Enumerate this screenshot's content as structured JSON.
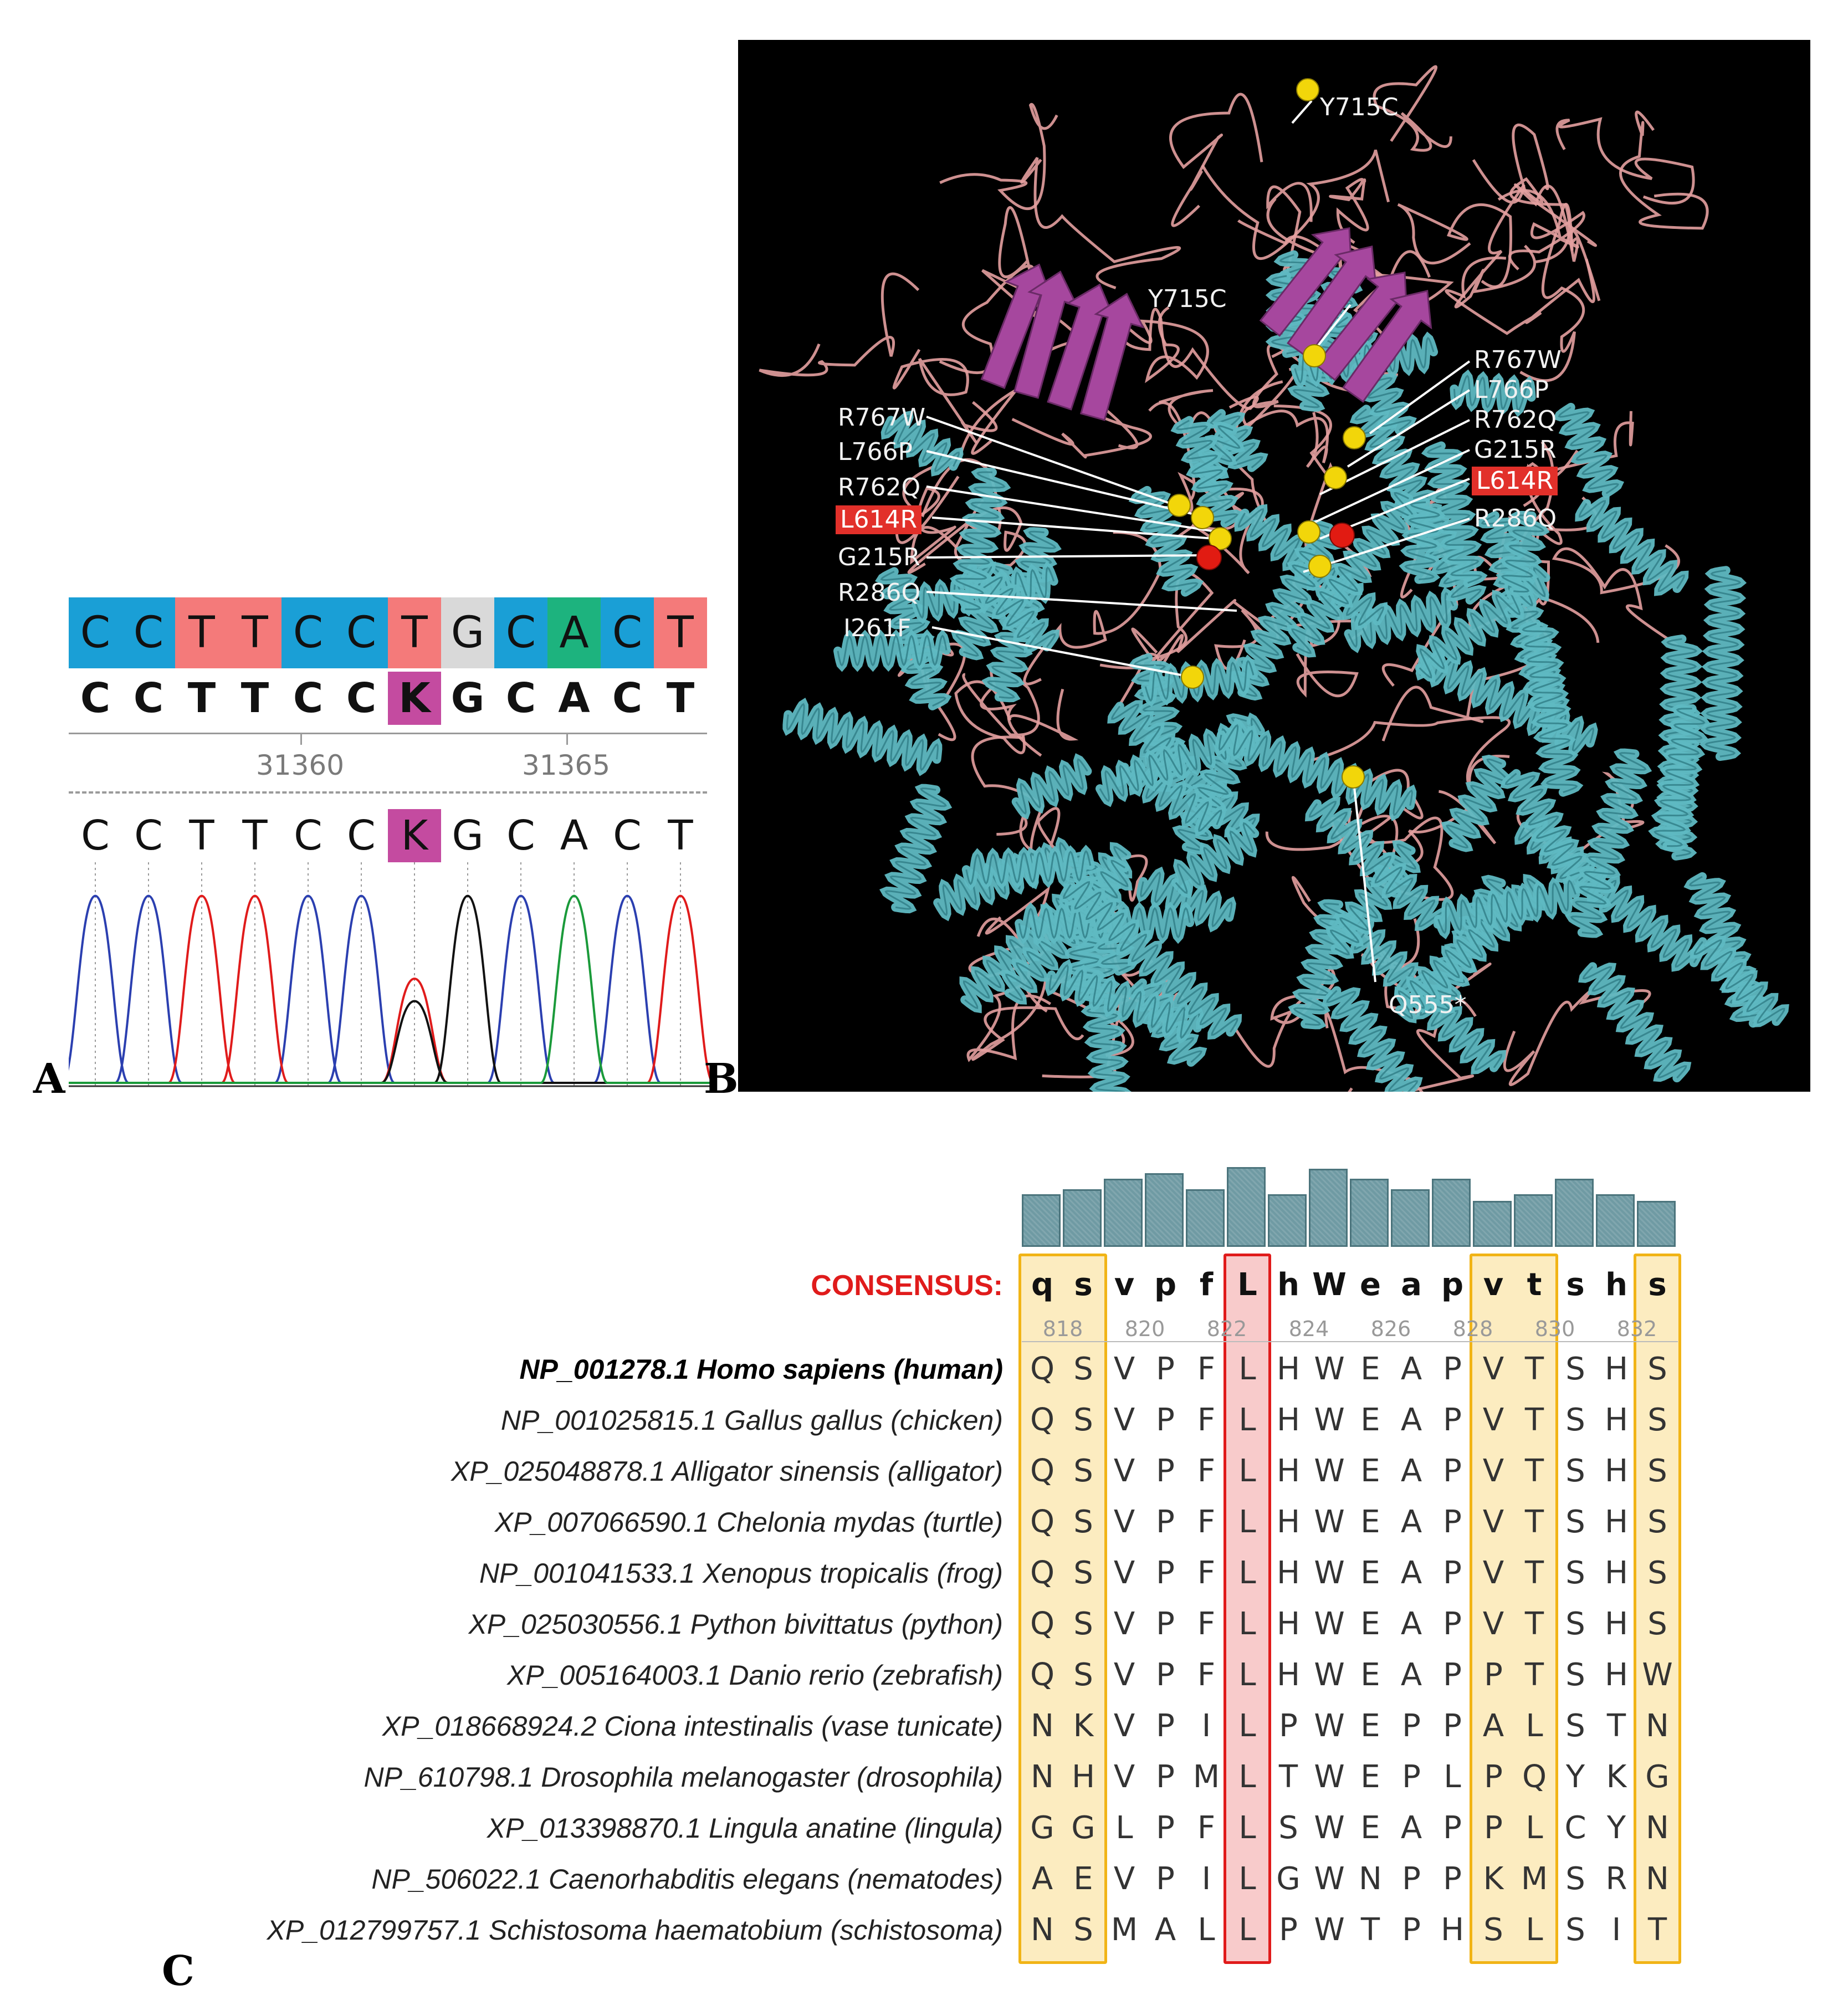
{
  "panels": {
    "a": "A",
    "b": "B",
    "c": "C"
  },
  "panel_a": {
    "reference_bases": [
      "C",
      "C",
      "T",
      "T",
      "C",
      "C",
      "T",
      "G",
      "C",
      "A",
      "C",
      "T"
    ],
    "consensus_bases": [
      "C",
      "C",
      "T",
      "T",
      "C",
      "C",
      "K",
      "G",
      "C",
      "A",
      "C",
      "T"
    ],
    "read_bases": [
      "C",
      "C",
      "T",
      "T",
      "C",
      "C",
      "K",
      "G",
      "C",
      "A",
      "C",
      "T"
    ],
    "ticks": [
      "31360",
      "31365"
    ],
    "base_colors": {
      "C": "#1a9fd6",
      "T": "#f47a7a",
      "G": "#d9d9d9",
      "A": "#1db37e",
      "K": "#c44ba0"
    }
  },
  "panel_b": {
    "top_label": "Y715C",
    "left_labels": [
      "Y715C",
      "R767W",
      "L766P",
      "R762Q",
      "L614R",
      "G215R",
      "R286Q",
      "I261F"
    ],
    "right_labels": [
      "R767W",
      "L766P",
      "R762Q",
      "G215R",
      "L614R",
      "R286Q"
    ],
    "bottom_label": "Q555*",
    "highlight": "L614R"
  },
  "panel_c": {
    "consensus_label": "CONSENSUS:",
    "consensus": [
      "q",
      "s",
      "v",
      "p",
      "f",
      "L",
      "h",
      "W",
      "e",
      "a",
      "p",
      "v",
      "t",
      "s",
      "h",
      "s"
    ],
    "positions": [
      "818",
      "820",
      "822",
      "824",
      "826",
      "828",
      "830",
      "832"
    ],
    "conservation": [
      0.55,
      0.62,
      0.78,
      0.86,
      0.62,
      0.95,
      0.55,
      0.93,
      0.78,
      0.62,
      0.78,
      0.45,
      0.55,
      0.78,
      0.55,
      0.45
    ],
    "rows": [
      {
        "label": "NP_001278.1 Homo sapiens (human)",
        "seq": [
          "Q",
          "S",
          "V",
          "P",
          "F",
          "L",
          "H",
          "W",
          "E",
          "A",
          "P",
          "V",
          "T",
          "S",
          "H",
          "S"
        ]
      },
      {
        "label": "NP_001025815.1 Gallus gallus (chicken)",
        "seq": [
          "Q",
          "S",
          "V",
          "P",
          "F",
          "L",
          "H",
          "W",
          "E",
          "A",
          "P",
          "V",
          "T",
          "S",
          "H",
          "S"
        ]
      },
      {
        "label": "XP_025048878.1 Alligator sinensis (alligator)",
        "seq": [
          "Q",
          "S",
          "V",
          "P",
          "F",
          "L",
          "H",
          "W",
          "E",
          "A",
          "P",
          "V",
          "T",
          "S",
          "H",
          "S"
        ]
      },
      {
        "label": "XP_007066590.1 Chelonia mydas (turtle)",
        "seq": [
          "Q",
          "S",
          "V",
          "P",
          "F",
          "L",
          "H",
          "W",
          "E",
          "A",
          "P",
          "V",
          "T",
          "S",
          "H",
          "S"
        ]
      },
      {
        "label": "NP_001041533.1 Xenopus tropicalis (frog)",
        "seq": [
          "Q",
          "S",
          "V",
          "P",
          "F",
          "L",
          "H",
          "W",
          "E",
          "A",
          "P",
          "V",
          "T",
          "S",
          "H",
          "S"
        ]
      },
      {
        "label": "XP_025030556.1 Python bivittatus (python)",
        "seq": [
          "Q",
          "S",
          "V",
          "P",
          "F",
          "L",
          "H",
          "W",
          "E",
          "A",
          "P",
          "V",
          "T",
          "S",
          "H",
          "S"
        ]
      },
      {
        "label": "XP_005164003.1 Danio rerio (zebrafish)",
        "seq": [
          "Q",
          "S",
          "V",
          "P",
          "F",
          "L",
          "H",
          "W",
          "E",
          "A",
          "P",
          "P",
          "T",
          "S",
          "H",
          "W"
        ]
      },
      {
        "label": "XP_018668924.2 Ciona intestinalis (vase tunicate)",
        "seq": [
          "N",
          "K",
          "V",
          "P",
          "I",
          "L",
          "P",
          "W",
          "E",
          "P",
          "P",
          "A",
          "L",
          "S",
          "T",
          "N"
        ]
      },
      {
        "label": "NP_610798.1 Drosophila melanogaster (drosophila)",
        "seq": [
          "N",
          "H",
          "V",
          "P",
          "M",
          "L",
          "T",
          "W",
          "E",
          "P",
          "L",
          "P",
          "Q",
          "Y",
          "K",
          "G"
        ]
      },
      {
        "label": "XP_013398870.1 Lingula anatine (lingula)",
        "seq": [
          "G",
          "G",
          "L",
          "P",
          "F",
          "L",
          "S",
          "W",
          "E",
          "A",
          "P",
          "P",
          "L",
          "C",
          "Y",
          "N"
        ]
      },
      {
        "label": "NP_506022.1 Caenorhabditis elegans (nematodes)",
        "seq": [
          "A",
          "E",
          "V",
          "P",
          "I",
          "L",
          "G",
          "W",
          "N",
          "P",
          "P",
          "K",
          "M",
          "S",
          "R",
          "N"
        ]
      },
      {
        "label": "XP_012799757.1 Schistosoma haematobium (schistosoma)",
        "seq": [
          "N",
          "S",
          "M",
          "A",
          "L",
          "L",
          "P",
          "W",
          "T",
          "P",
          "H",
          "S",
          "L",
          "S",
          "I",
          "T"
        ]
      }
    ]
  }
}
